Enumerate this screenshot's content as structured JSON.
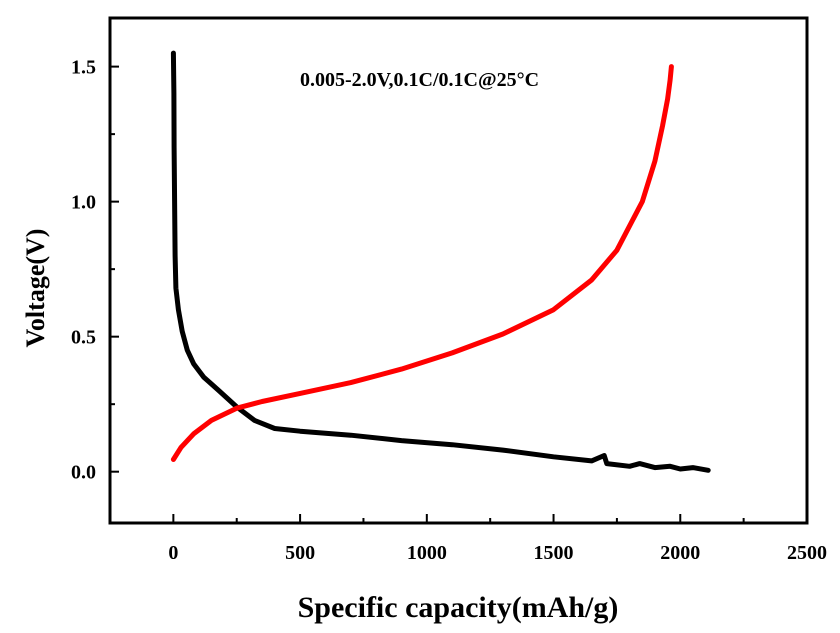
{
  "chart_data": {
    "type": "line",
    "title": "",
    "annotation": "0.005-2.0V,0.1C/0.1C@25°C",
    "xlabel": "Specific capacity(mAh/g)",
    "ylabel": "Voltage(V)",
    "xlim": [
      -250,
      2500
    ],
    "ylim": [
      -0.19,
      1.68
    ],
    "xticks": [
      0,
      500,
      1000,
      1500,
      2000,
      2500
    ],
    "yticks": [
      0.0,
      0.5,
      1.0,
      1.5
    ],
    "xtick_labels": [
      "0",
      "500",
      "1000",
      "1500",
      "2000",
      "2500"
    ],
    "ytick_labels": [
      "0.0",
      "0.5",
      "1.0",
      "1.5"
    ],
    "grid": false,
    "legend": false,
    "series": [
      {
        "color": "#000000",
        "points": [
          [
            0,
            1.55
          ],
          [
            2,
            1.4
          ],
          [
            3,
            1.2
          ],
          [
            5,
            1.0
          ],
          [
            7,
            0.8
          ],
          [
            10,
            0.68
          ],
          [
            20,
            0.6
          ],
          [
            35,
            0.52
          ],
          [
            55,
            0.45
          ],
          [
            80,
            0.4
          ],
          [
            120,
            0.35
          ],
          [
            180,
            0.3
          ],
          [
            250,
            0.24
          ],
          [
            320,
            0.19
          ],
          [
            400,
            0.16
          ],
          [
            500,
            0.15
          ],
          [
            700,
            0.135
          ],
          [
            900,
            0.115
          ],
          [
            1100,
            0.1
          ],
          [
            1300,
            0.08
          ],
          [
            1500,
            0.055
          ],
          [
            1650,
            0.04
          ],
          [
            1700,
            0.06
          ],
          [
            1710,
            0.03
          ],
          [
            1800,
            0.02
          ],
          [
            1840,
            0.03
          ],
          [
            1900,
            0.015
          ],
          [
            1960,
            0.02
          ],
          [
            2000,
            0.01
          ],
          [
            2050,
            0.015
          ],
          [
            2110,
            0.005
          ]
        ]
      },
      {
        "color": "#ff0000",
        "points": [
          [
            0,
            0.045
          ],
          [
            30,
            0.09
          ],
          [
            80,
            0.14
          ],
          [
            150,
            0.19
          ],
          [
            250,
            0.235
          ],
          [
            350,
            0.26
          ],
          [
            500,
            0.29
          ],
          [
            700,
            0.33
          ],
          [
            900,
            0.38
          ],
          [
            1100,
            0.44
          ],
          [
            1300,
            0.51
          ],
          [
            1500,
            0.6
          ],
          [
            1650,
            0.71
          ],
          [
            1750,
            0.82
          ],
          [
            1850,
            1.0
          ],
          [
            1900,
            1.15
          ],
          [
            1930,
            1.28
          ],
          [
            1950,
            1.38
          ],
          [
            1960,
            1.45
          ],
          [
            1965,
            1.5
          ]
        ]
      }
    ]
  }
}
